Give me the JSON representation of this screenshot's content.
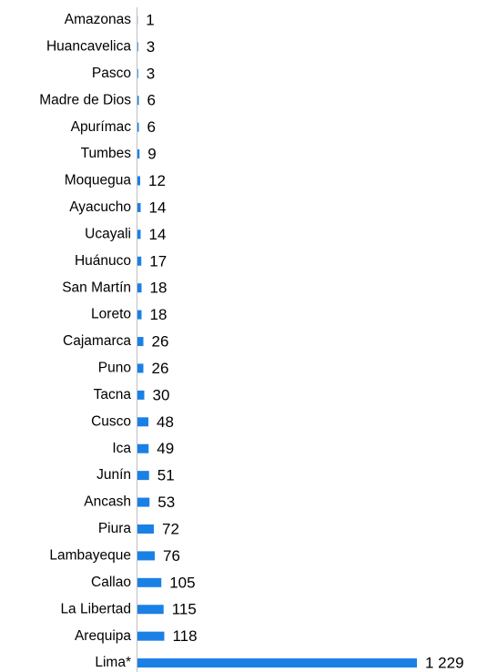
{
  "chart_data": {
    "type": "bar",
    "orientation": "horizontal",
    "color": "#1a80e5",
    "categories": [
      "Amazonas",
      "Huancavelica",
      "Pasco",
      "Madre de Dios",
      "Apurímac",
      "Tumbes",
      "Moquegua",
      "Ayacucho",
      "Ucayali",
      "Huánuco",
      "San Martín",
      "Loreto",
      "Cajamarca",
      "Puno",
      "Tacna",
      "Cusco",
      "Ica",
      "Junín",
      "Ancash",
      "Piura",
      "Lambayeque",
      "Callao",
      "La Libertad",
      "Arequipa",
      "Lima*"
    ],
    "values": [
      1,
      3,
      3,
      6,
      6,
      9,
      12,
      14,
      14,
      17,
      18,
      18,
      26,
      26,
      30,
      48,
      49,
      51,
      53,
      72,
      76,
      105,
      115,
      118,
      1229
    ],
    "value_labels": [
      "1",
      "3",
      "3",
      "6",
      "6",
      "9",
      "12",
      "14",
      "14",
      "17",
      "18",
      "18",
      "26",
      "26",
      "30",
      "48",
      "49",
      "51",
      "53",
      "72",
      "76",
      "105",
      "115",
      "118",
      "1 229"
    ]
  }
}
